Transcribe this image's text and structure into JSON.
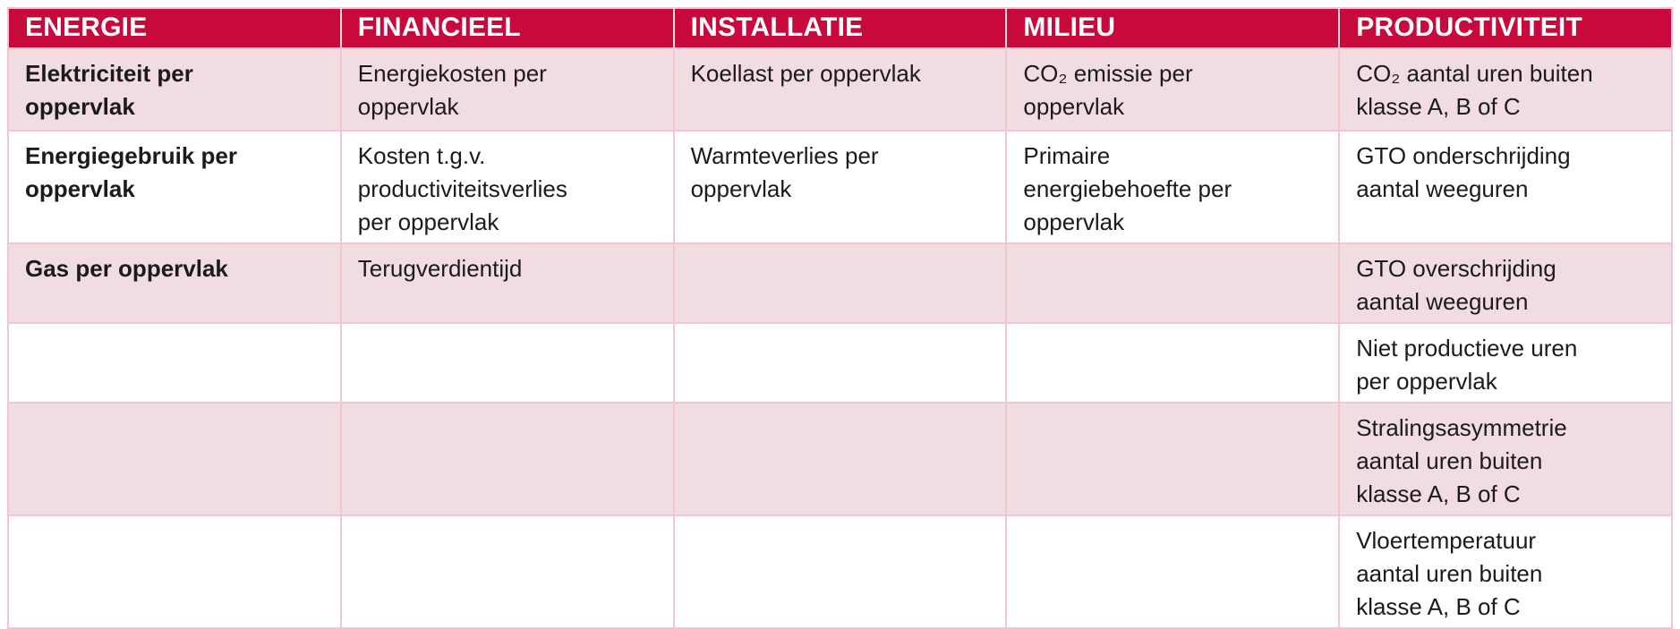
{
  "colors": {
    "header_bg": "#c8093b",
    "header_text": "#ffffff",
    "row_pink": "#f1dce2",
    "row_white": "#ffffff",
    "border": "#f0c6d1",
    "header_divider": "#f5dde3",
    "text": "#1b1b1b"
  },
  "table": {
    "headers": [
      "ENERGIE",
      "FINANCIEEL",
      "INSTALLATIE",
      "MILIEU",
      "PRODUCTIVITEIT"
    ],
    "rows": [
      {
        "cells": [
          "Elektriciteit per\noppervlak",
          "Energiekosten per\noppervlak",
          "Koellast per oppervlak",
          "CO₂ emissie per\noppervlak",
          "CO₂ aantal uren buiten\nklasse A, B of C"
        ]
      },
      {
        "cells": [
          "Energiegebruik per\noppervlak",
          "Kosten t.g.v.\nproductiviteitsverlies\nper oppervlak",
          "Warmteverlies per\noppervlak",
          "Primaire\nenergiebehoefte per\noppervlak",
          "GTO onderschrijding\naantal weeguren"
        ]
      },
      {
        "cells": [
          "Gas per oppervlak",
          "Terugverdientijd",
          "",
          "",
          "GTO overschrijding\naantal weeguren"
        ]
      },
      {
        "cells": [
          "",
          "",
          "",
          "",
          "Niet productieve uren\nper oppervlak"
        ]
      },
      {
        "cells": [
          "",
          "",
          "",
          "",
          "Stralingsasymmetrie\naantal uren buiten\nklasse A, B of C"
        ]
      },
      {
        "cells": [
          "",
          "",
          "",
          "",
          "Vloertemperatuur\naantal uren buiten\nklasse A, B of C"
        ]
      }
    ]
  }
}
